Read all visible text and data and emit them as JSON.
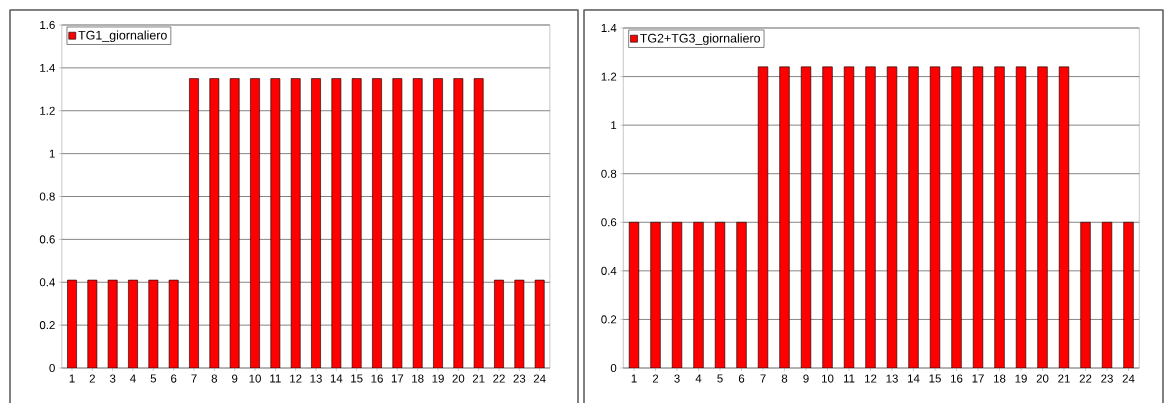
{
  "chart_data": [
    {
      "type": "bar",
      "categories": [
        "1",
        "2",
        "3",
        "4",
        "5",
        "6",
        "7",
        "8",
        "9",
        "10",
        "11",
        "12",
        "13",
        "14",
        "15",
        "16",
        "17",
        "18",
        "19",
        "20",
        "21",
        "22",
        "23",
        "24"
      ],
      "series": [
        {
          "name": "TG1_giornaliero",
          "color": "#ff0000",
          "values": [
            0.41,
            0.41,
            0.41,
            0.41,
            0.41,
            0.41,
            1.35,
            1.35,
            1.35,
            1.35,
            1.35,
            1.35,
            1.35,
            1.35,
            1.35,
            1.35,
            1.35,
            1.35,
            1.35,
            1.35,
            1.35,
            0.41,
            0.41,
            0.41
          ]
        }
      ],
      "ylim": [
        0,
        1.6
      ],
      "yticks": [
        0,
        0.2,
        0.4,
        0.6,
        0.8,
        1,
        1.2,
        1.4,
        1.6
      ],
      "grid": "y",
      "legend": "top left"
    },
    {
      "type": "bar",
      "categories": [
        "1",
        "2",
        "3",
        "4",
        "5",
        "6",
        "7",
        "8",
        "9",
        "10",
        "11",
        "12",
        "13",
        "14",
        "15",
        "16",
        "17",
        "18",
        "19",
        "20",
        "21",
        "22",
        "23",
        "24"
      ],
      "series": [
        {
          "name": "TG2+TG3_giornaliero",
          "color": "#ff0000",
          "values": [
            0.6,
            0.6,
            0.6,
            0.6,
            0.6,
            0.6,
            1.24,
            1.24,
            1.24,
            1.24,
            1.24,
            1.24,
            1.24,
            1.24,
            1.24,
            1.24,
            1.24,
            1.24,
            1.24,
            1.24,
            1.24,
            0.6,
            0.6,
            0.6
          ]
        }
      ],
      "ylim": [
        0,
        1.4
      ],
      "yticks": [
        0,
        0.2,
        0.4,
        0.6,
        0.8,
        1,
        1.2,
        1.4
      ],
      "grid": "y",
      "legend": "top left"
    }
  ]
}
